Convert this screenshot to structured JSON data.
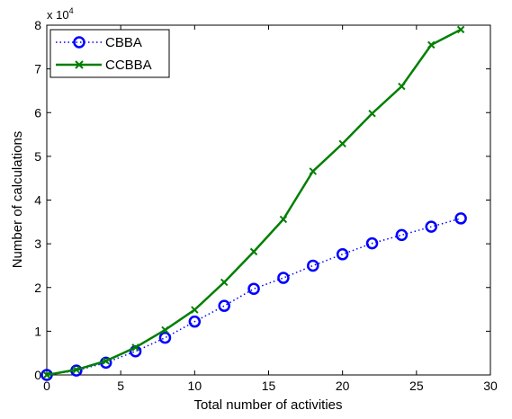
{
  "chart_data": {
    "type": "line",
    "title": "",
    "xlabel": "Total number of activities",
    "ylabel": "Number of calculations",
    "xlim": [
      0,
      30
    ],
    "ylim": [
      0,
      80000
    ],
    "x_ticks": [
      0,
      5,
      10,
      15,
      20,
      25,
      30
    ],
    "x_tick_labels": [
      "0",
      "5",
      "10",
      "15",
      "20",
      "25",
      "30"
    ],
    "y_ticks": [
      0,
      10000,
      20000,
      30000,
      40000,
      50000,
      60000,
      70000,
      80000
    ],
    "y_tick_labels": [
      "0",
      "1",
      "2",
      "3",
      "4",
      "5",
      "6",
      "7",
      "8"
    ],
    "y_exponent": {
      "base": "x 10",
      "power": "4"
    },
    "grid": false,
    "legend_position": "top-left",
    "x": [
      0,
      2,
      4,
      6,
      8,
      10,
      12,
      14,
      16,
      18,
      20,
      22,
      24,
      26,
      28
    ],
    "series": [
      {
        "name": "CBBA",
        "color": "#0000ff",
        "line_style": "dotted",
        "marker": "circle",
        "values": [
          0,
          1000,
          2800,
          5400,
          8500,
          12200,
          15800,
          19700,
          22200,
          25000,
          27600,
          30100,
          32000,
          33900,
          35800
        ]
      },
      {
        "name": "CCBBA",
        "color": "#007f00",
        "line_style": "solid",
        "marker": "x",
        "values": [
          0,
          1200,
          3200,
          6300,
          10300,
          14900,
          21200,
          28200,
          35600,
          46600,
          52900,
          59800,
          66000,
          75500,
          79000
        ]
      }
    ]
  }
}
